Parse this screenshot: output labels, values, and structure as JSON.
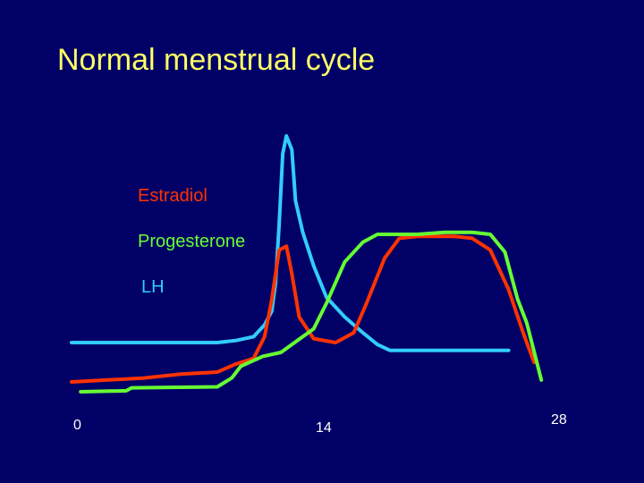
{
  "slide": {
    "title": "Normal menstrual cycle"
  },
  "chart_data": {
    "type": "line",
    "title": "Normal menstrual cycle",
    "xlabel": "",
    "ylabel": "",
    "xlim": [
      0,
      28
    ],
    "x_ticks": [
      "0",
      "14",
      "28"
    ],
    "legend_placement": "center-left",
    "grid": false,
    "series": [
      {
        "name": "Estradiol",
        "color": "#ff3300",
        "points": [
          [
            0,
            0.05
          ],
          [
            2,
            0.06
          ],
          [
            4,
            0.07
          ],
          [
            6,
            0.09
          ],
          [
            8,
            0.1
          ],
          [
            9,
            0.14
          ],
          [
            10,
            0.17
          ],
          [
            10.6,
            0.28
          ],
          [
            11,
            0.47
          ],
          [
            11.4,
            0.72
          ],
          [
            11.8,
            0.74
          ],
          [
            12.1,
            0.6
          ],
          [
            12.5,
            0.38
          ],
          [
            13.3,
            0.27
          ],
          [
            14.5,
            0.25
          ],
          [
            15.5,
            0.3
          ],
          [
            16.2,
            0.45
          ],
          [
            17.2,
            0.68
          ],
          [
            18,
            0.78
          ],
          [
            19,
            0.79
          ],
          [
            21,
            0.79
          ],
          [
            22,
            0.78
          ],
          [
            23,
            0.72
          ],
          [
            24,
            0.52
          ],
          [
            24.8,
            0.3
          ],
          [
            25.4,
            0.15
          ]
        ]
      },
      {
        "name": "Progesterone",
        "color": "#66ff33",
        "points": [
          [
            0.5,
            0
          ],
          [
            3,
            0.005
          ],
          [
            3.3,
            0.02
          ],
          [
            8,
            0.025
          ],
          [
            8.8,
            0.07
          ],
          [
            9.3,
            0.13
          ],
          [
            10.5,
            0.18
          ],
          [
            11.5,
            0.2
          ],
          [
            12.4,
            0.26
          ],
          [
            13.3,
            0.32
          ],
          [
            14,
            0.45
          ],
          [
            15,
            0.66
          ],
          [
            16,
            0.76
          ],
          [
            16.8,
            0.8
          ],
          [
            19,
            0.8
          ],
          [
            20.5,
            0.81
          ],
          [
            22,
            0.81
          ],
          [
            23,
            0.8
          ],
          [
            23.8,
            0.71
          ],
          [
            24.5,
            0.47
          ],
          [
            25,
            0.35
          ],
          [
            25.8,
            0.06
          ]
        ]
      },
      {
        "name": "LH",
        "color": "#33ccff",
        "points": [
          [
            0,
            0.25
          ],
          [
            4,
            0.25
          ],
          [
            8,
            0.25
          ],
          [
            9,
            0.26
          ],
          [
            10,
            0.28
          ],
          [
            10.6,
            0.34
          ],
          [
            11,
            0.41
          ],
          [
            11.2,
            0.55
          ],
          [
            11.4,
            0.85
          ],
          [
            11.6,
            1.21
          ],
          [
            11.8,
            1.3
          ],
          [
            12.1,
            1.23
          ],
          [
            12.3,
            0.97
          ],
          [
            12.7,
            0.81
          ],
          [
            13.3,
            0.64
          ],
          [
            14,
            0.48
          ],
          [
            15,
            0.38
          ],
          [
            16,
            0.3
          ],
          [
            16.8,
            0.24
          ],
          [
            17.5,
            0.21
          ],
          [
            21,
            0.21
          ],
          [
            24,
            0.21
          ]
        ]
      }
    ]
  }
}
